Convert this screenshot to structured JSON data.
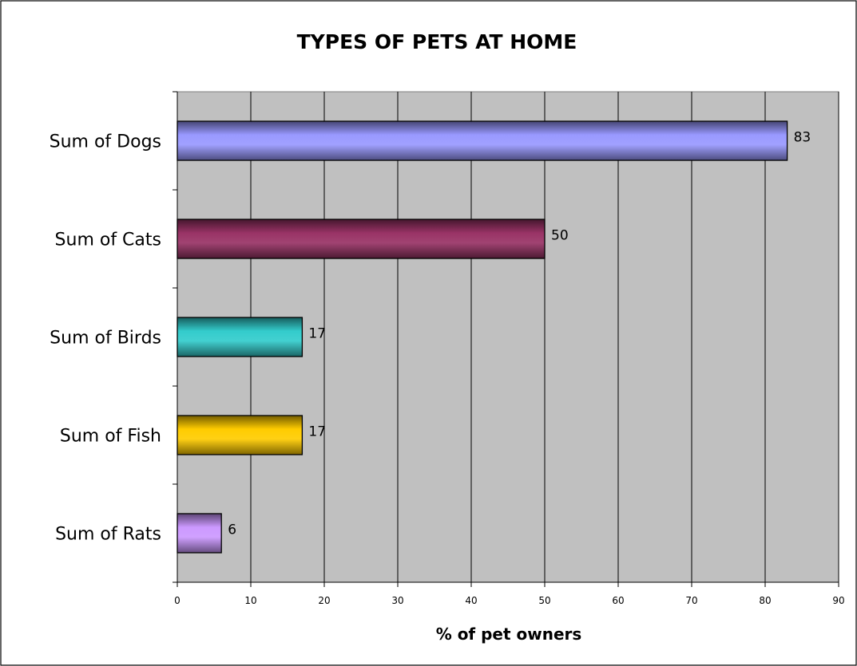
{
  "chart_data": {
    "type": "bar",
    "orientation": "horizontal",
    "title": "TYPES OF PETS AT HOME",
    "xlabel": "% of pet owners",
    "ylabel": "",
    "categories": [
      "Sum of Dogs",
      "Sum of Cats",
      "Sum of Birds",
      "Sum of Fish",
      "Sum of Rats"
    ],
    "values": [
      83,
      50,
      17,
      17,
      6
    ],
    "data_labels": [
      "83",
      "50",
      "17",
      "17",
      "6"
    ],
    "bar_colors": [
      "#9999ff",
      "#993366",
      "#33cccc",
      "#ffcc00",
      "#cc99ff"
    ],
    "xlim": [
      0,
      90
    ],
    "xticks": [
      0,
      10,
      20,
      30,
      40,
      50,
      60,
      70,
      80,
      90
    ],
    "xtick_labels": [
      "0",
      "10",
      "20",
      "30",
      "40",
      "50",
      "60",
      "70",
      "80",
      "90"
    ],
    "grid": true,
    "plot_background": "#c0c0c0",
    "legend": "none"
  }
}
